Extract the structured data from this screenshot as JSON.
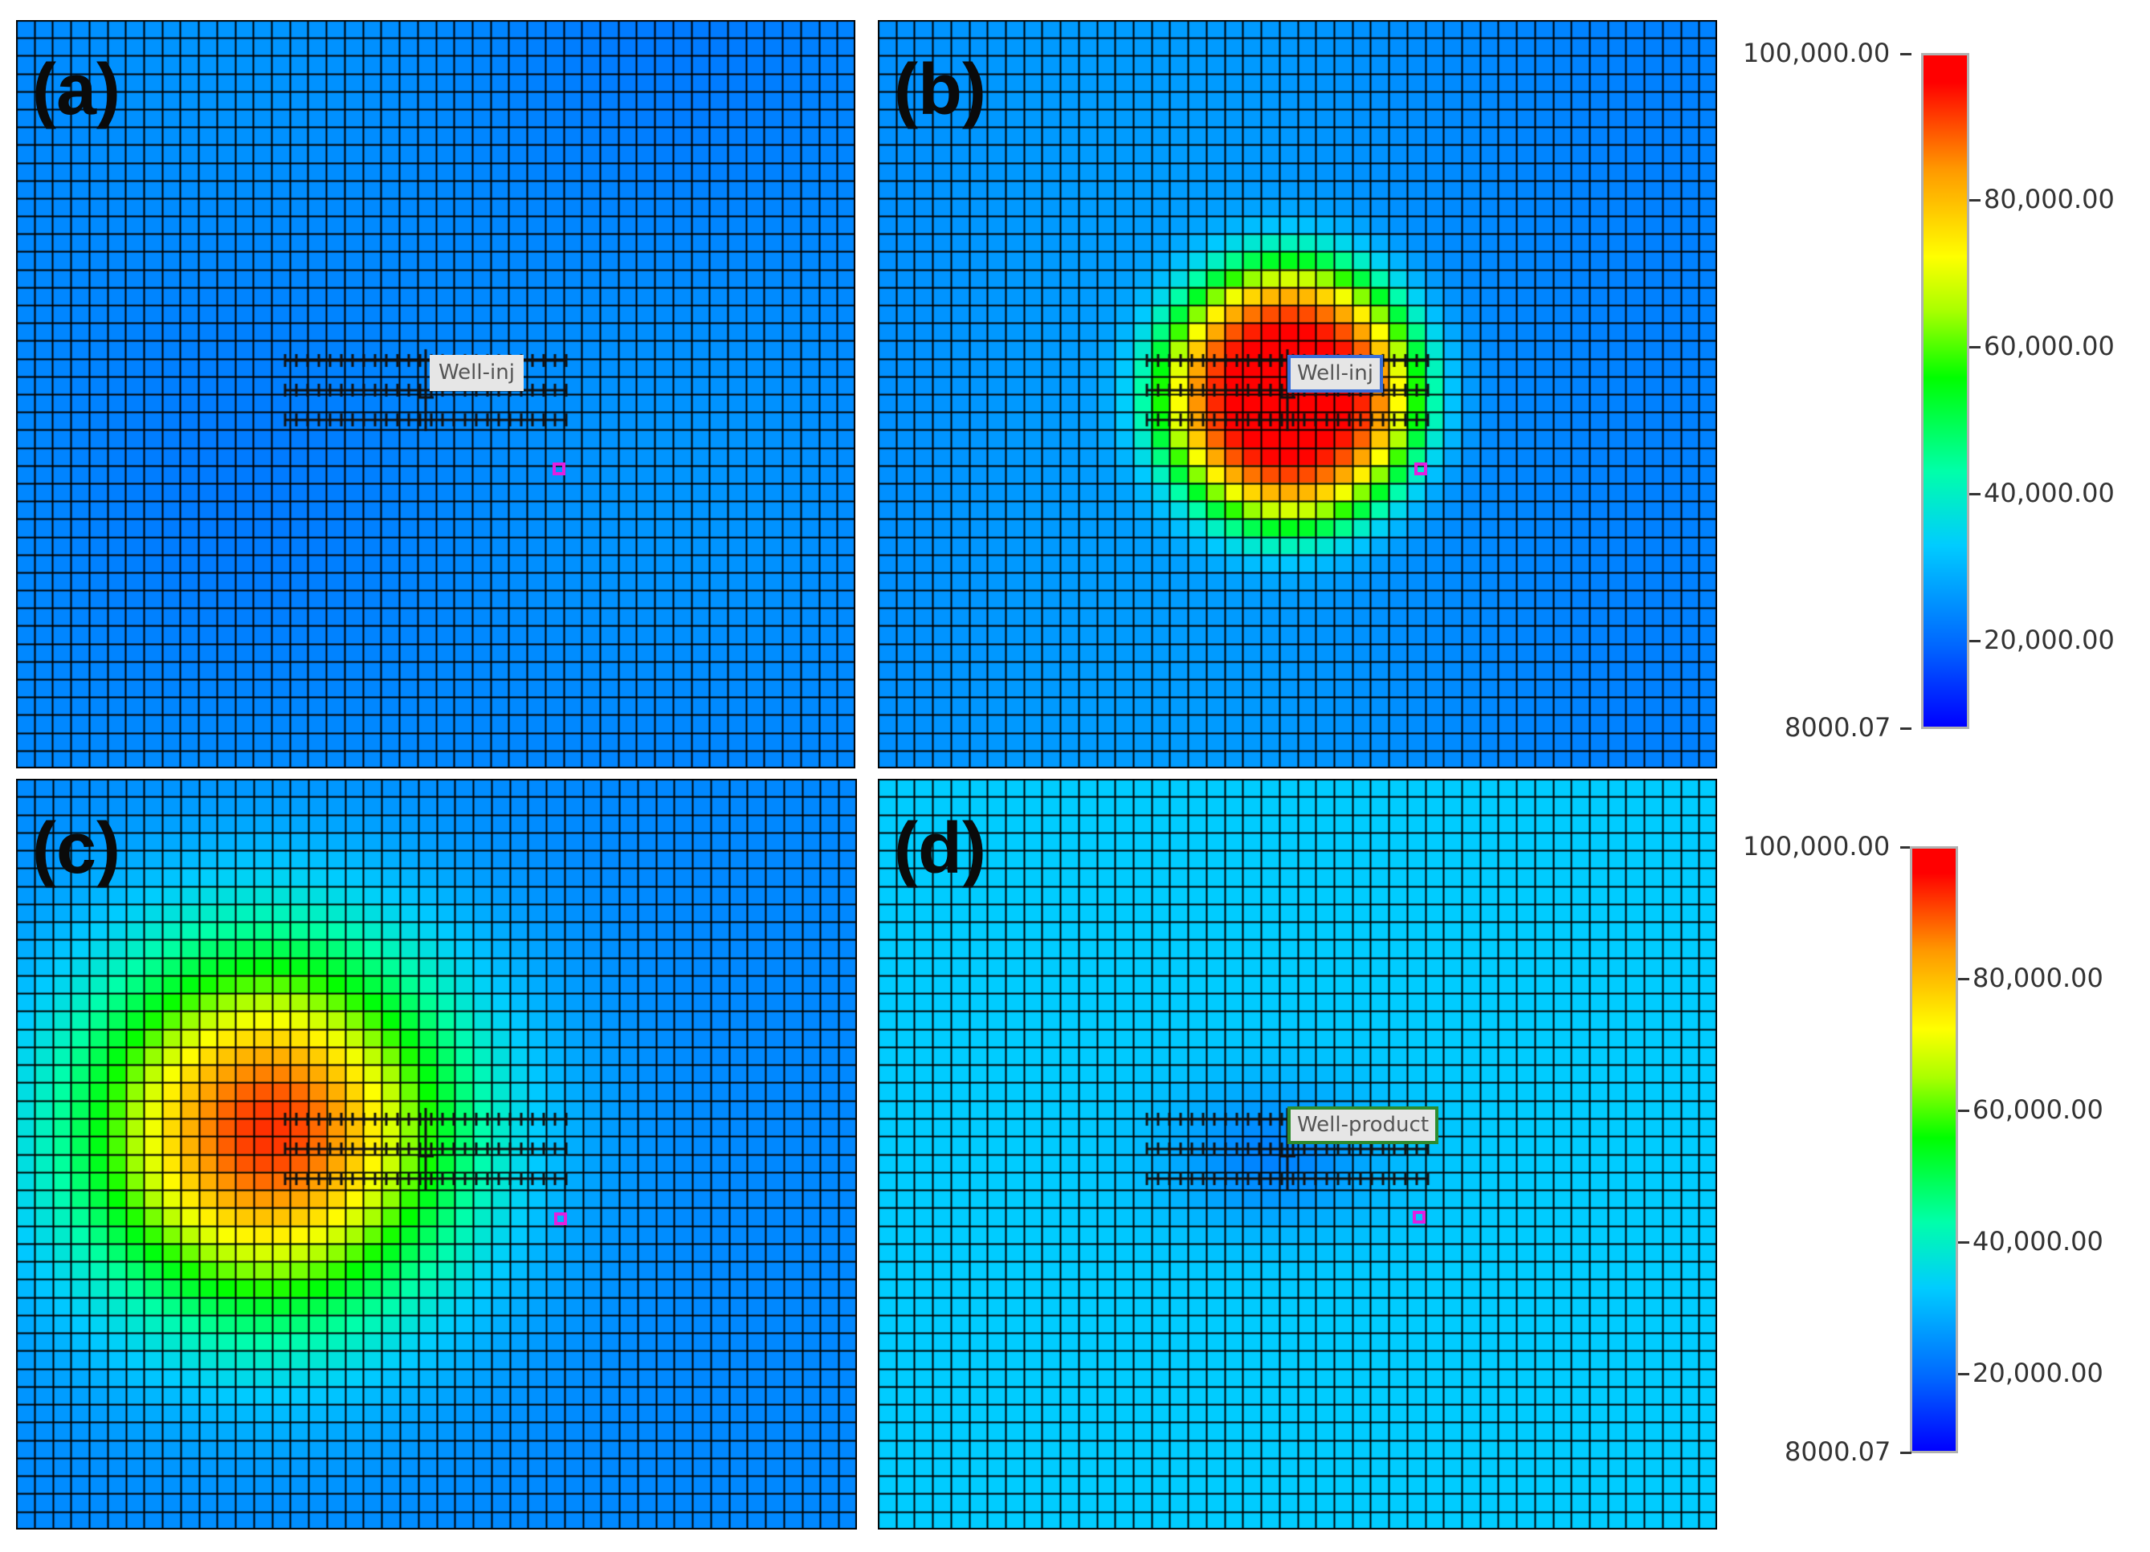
{
  "panels": [
    {
      "id": "a",
      "label": "(a)",
      "well_label": "Well-inj",
      "well_border": "#e6e6e6",
      "field": "uniform",
      "level": 0.16
    },
    {
      "id": "b",
      "label": "(b)",
      "well_label": "Well-inj",
      "well_border": "#3a6fd8",
      "field": "injection-early",
      "level": 1.0
    },
    {
      "id": "c",
      "label": "(c)",
      "well_label": "",
      "well_border": "",
      "field": "injection-spread",
      "level": 0.95
    },
    {
      "id": "d",
      "label": "(d)",
      "well_label": "Well-product",
      "well_border": "#2e8b2e",
      "field": "production",
      "level": 0.25
    }
  ],
  "colorbars": [
    {
      "max_label": "100,000.00",
      "ticks": [
        "80,000.00",
        "60,000.00",
        "40,000.00",
        "20,000.00"
      ],
      "min_label": "8000.07"
    },
    {
      "max_label": "100,000.00",
      "ticks": [
        "80,000.00",
        "60,000.00",
        "40,000.00",
        "20,000.00"
      ],
      "min_label": "8000.07"
    }
  ],
  "colors": {
    "marker": "#e020e0",
    "grid_line": "#000000",
    "cross_mark": "#111111"
  }
}
